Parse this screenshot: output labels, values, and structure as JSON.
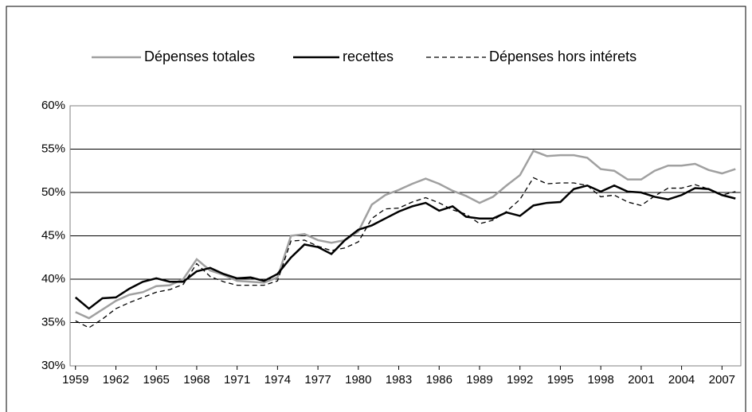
{
  "chart_data": {
    "type": "line",
    "x": [
      1959,
      1960,
      1961,
      1962,
      1963,
      1964,
      1965,
      1966,
      1967,
      1968,
      1969,
      1970,
      1971,
      1972,
      1973,
      1974,
      1975,
      1976,
      1977,
      1978,
      1979,
      1980,
      1981,
      1982,
      1983,
      1984,
      1985,
      1986,
      1987,
      1988,
      1989,
      1990,
      1991,
      1992,
      1993,
      1994,
      1995,
      1996,
      1997,
      1998,
      1999,
      2000,
      2001,
      2002,
      2003,
      2004,
      2005,
      2006,
      2007,
      2008
    ],
    "series": [
      {
        "name": "Dépenses totales",
        "color": "#a0a0a0",
        "style": "solid",
        "values": [
          36.2,
          35.5,
          36.5,
          37.5,
          38.2,
          38.5,
          39.2,
          39.3,
          40.0,
          42.3,
          41.0,
          40.5,
          39.8,
          39.7,
          39.6,
          40.2,
          45.0,
          45.2,
          44.5,
          44.2,
          44.5,
          45.5,
          48.6,
          49.7,
          50.3,
          51.0,
          51.6,
          51.0,
          50.2,
          49.6,
          48.8,
          49.5,
          50.8,
          52.0,
          54.8,
          54.2,
          54.3,
          54.3,
          54.0,
          52.7,
          52.5,
          51.5,
          51.5,
          52.5,
          53.1,
          53.1,
          53.3,
          52.6,
          52.2,
          52.7
        ]
      },
      {
        "name": "recettes",
        "color": "#000000",
        "style": "solid",
        "values": [
          37.9,
          36.6,
          37.8,
          37.9,
          38.9,
          39.7,
          40.1,
          39.7,
          39.7,
          40.9,
          41.3,
          40.6,
          40.1,
          40.2,
          39.8,
          40.6,
          42.5,
          44.0,
          43.7,
          42.9,
          44.5,
          45.7,
          46.2,
          47.0,
          47.8,
          48.4,
          48.8,
          47.9,
          48.4,
          47.2,
          47.0,
          47.0,
          47.7,
          47.3,
          48.5,
          48.8,
          48.9,
          50.4,
          50.8,
          50.1,
          50.8,
          50.1,
          50.0,
          49.5,
          49.2,
          49.7,
          50.5,
          50.4,
          49.7,
          49.3
        ]
      },
      {
        "name": "Dépenses hors intérets",
        "color": "#000000",
        "style": "dashed",
        "values": [
          35.2,
          34.4,
          35.4,
          36.6,
          37.3,
          37.9,
          38.5,
          38.8,
          39.4,
          41.8,
          40.3,
          39.7,
          39.3,
          39.3,
          39.3,
          39.8,
          44.4,
          44.5,
          43.8,
          43.3,
          43.6,
          44.3,
          47.0,
          48.1,
          48.2,
          48.9,
          49.4,
          48.8,
          48.0,
          47.5,
          46.4,
          46.8,
          47.8,
          49.2,
          51.7,
          51.0,
          51.1,
          51.1,
          50.8,
          49.5,
          49.7,
          48.9,
          48.5,
          49.6,
          50.5,
          50.5,
          50.9,
          50.4,
          49.7,
          50.1
        ]
      }
    ],
    "xlim": [
      1958.6,
      2008.4
    ],
    "xticks": [
      1959,
      1962,
      1965,
      1968,
      1971,
      1974,
      1977,
      1980,
      1983,
      1986,
      1989,
      1992,
      1995,
      1998,
      2001,
      2004,
      2007
    ],
    "ylim": [
      30,
      60
    ],
    "yticks": [
      {
        "value": 30,
        "label": "30%"
      },
      {
        "value": 35,
        "label": "35%"
      },
      {
        "value": 40,
        "label": "40%"
      },
      {
        "value": 45,
        "label": "45%"
      },
      {
        "value": 50,
        "label": "50%"
      },
      {
        "value": 55,
        "label": "55%"
      },
      {
        "value": 60,
        "label": "60%"
      }
    ],
    "grid": true,
    "legend": "top"
  }
}
